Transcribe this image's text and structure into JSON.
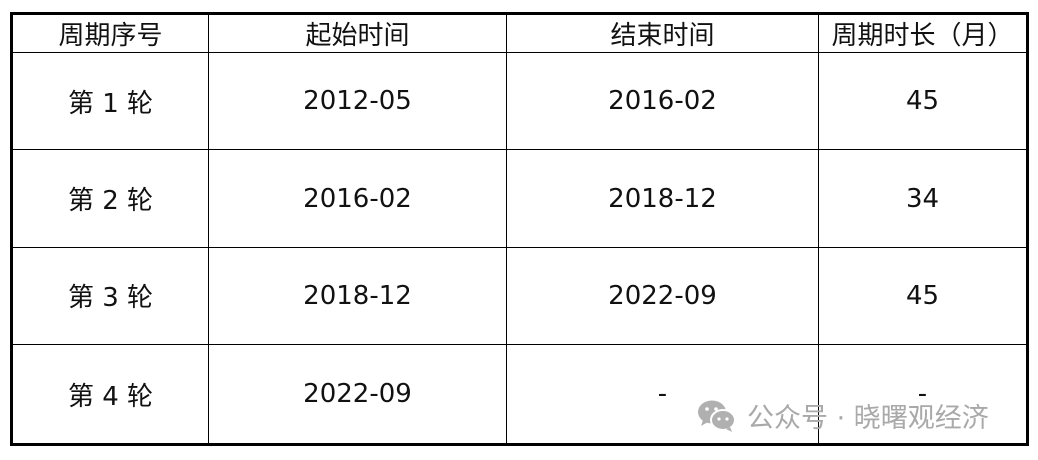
{
  "table": {
    "headers": [
      "周期序号",
      "起始时间",
      "结束时间",
      "周期时长（月）"
    ],
    "rows": [
      [
        "第 1 轮",
        "2012-05",
        "2016-02",
        "45"
      ],
      [
        "第 2 轮",
        "2016-02",
        "2018-12",
        "34"
      ],
      [
        "第 3 轮",
        "2018-12",
        "2022-09",
        "45"
      ],
      [
        "第 4 轮",
        "2022-09",
        "-",
        "-"
      ]
    ]
  },
  "watermark": {
    "text": "公众号 · 晓曙观经济",
    "icon": "wechat-icon",
    "color": "#a9a9a9"
  }
}
